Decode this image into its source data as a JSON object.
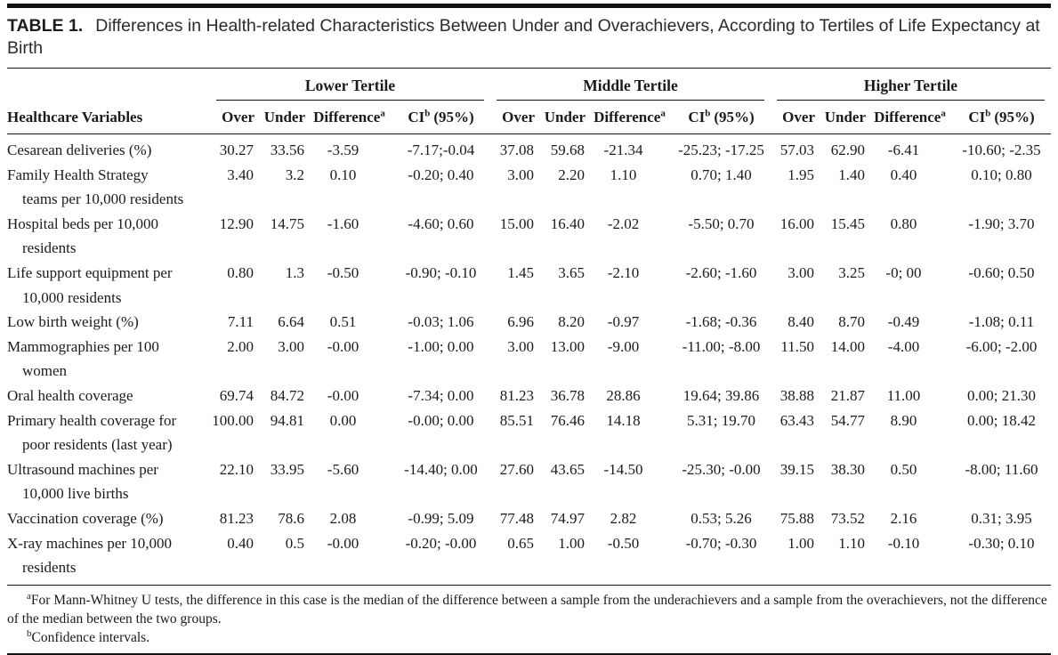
{
  "title": {
    "label": "TABLE 1.",
    "text": "Differences in Health-related Characteristics Between Under and Overachievers, According to Tertiles of Life Expectancy at Birth"
  },
  "table": {
    "row_header": "Healthcare Variables",
    "groups": [
      {
        "label": "Lower Tertile"
      },
      {
        "label": "Middle Tertile"
      },
      {
        "label": "Higher Tertile"
      }
    ],
    "subheaders": {
      "over": "Over",
      "under": "Under",
      "difference": "Difference",
      "difference_sup": "a",
      "ci": "CI",
      "ci_sup": "b",
      "ci_rest": "(95%)"
    },
    "rows": [
      {
        "variable": [
          "Cesarean deliveries (%)"
        ],
        "lower": [
          "30.27",
          "33.56",
          "-3.59",
          "-7.17;-0.04"
        ],
        "middle": [
          "37.08",
          "59.68",
          "-21.34",
          "-25.23; -17.25"
        ],
        "higher": [
          "57.03",
          "62.90",
          "-6.41",
          "-10.60; -2.35"
        ]
      },
      {
        "variable": [
          "Family Health Strategy",
          "teams per 10,000 residents"
        ],
        "lower": [
          "3.40",
          "3.2",
          "0.10",
          "-0.20; 0.40"
        ],
        "middle": [
          "3.00",
          "2.20",
          "1.10",
          "0.70; 1.40"
        ],
        "higher": [
          "1.95",
          "1.40",
          "0.40",
          "0.10; 0.80"
        ]
      },
      {
        "variable": [
          "Hospital beds per 10,000",
          "residents"
        ],
        "lower": [
          "12.90",
          "14.75",
          "-1.60",
          "-4.60; 0.60"
        ],
        "middle": [
          "15.00",
          "16.40",
          "-2.02",
          "-5.50; 0.70"
        ],
        "higher": [
          "16.00",
          "15.45",
          "0.80",
          "-1.90; 3.70"
        ]
      },
      {
        "variable": [
          "Life support equipment per",
          "10,000 residents"
        ],
        "lower": [
          "0.80",
          "1.3",
          "-0.50",
          "-0.90; -0.10"
        ],
        "middle": [
          "1.45",
          "3.65",
          "-2.10",
          "-2.60; -1.60"
        ],
        "higher": [
          "3.00",
          "3.25",
          "-0; 00",
          "-0.60; 0.50"
        ]
      },
      {
        "variable": [
          "Low birth weight (%)"
        ],
        "lower": [
          "7.11",
          "6.64",
          "0.51",
          "-0.03; 1.06"
        ],
        "middle": [
          "6.96",
          "8.20",
          "-0.97",
          "-1.68; -0.36"
        ],
        "higher": [
          "8.40",
          "8.70",
          "-0.49",
          "-1.08; 0.11"
        ]
      },
      {
        "variable": [
          "Mammographies per 100",
          "women"
        ],
        "lower": [
          "2.00",
          "3.00",
          "-0.00",
          "-1.00; 0.00"
        ],
        "middle": [
          "3.00",
          "13.00",
          "-9.00",
          "-11.00; -8.00"
        ],
        "higher": [
          "11.50",
          "14.00",
          "-4.00",
          "-6.00; -2.00"
        ]
      },
      {
        "variable": [
          "Oral health coverage"
        ],
        "lower": [
          "69.74",
          "84.72",
          "-0.00",
          "-7.34; 0.00"
        ],
        "middle": [
          "81.23",
          "36.78",
          "28.86",
          "19.64; 39.86"
        ],
        "higher": [
          "38.88",
          "21.87",
          "11.00",
          "0.00; 21.30"
        ]
      },
      {
        "variable": [
          "Primary health coverage for",
          "poor residents (last year)"
        ],
        "lower": [
          "100.00",
          "94.81",
          "0.00",
          "-0.00; 0.00"
        ],
        "middle": [
          "85.51",
          "76.46",
          "14.18",
          "5.31; 19.70"
        ],
        "higher": [
          "63.43",
          "54.77",
          "8.90",
          "0.00; 18.42"
        ]
      },
      {
        "variable": [
          "Ultrasound machines per",
          "10,000 live births"
        ],
        "lower": [
          "22.10",
          "33.95",
          "-5.60",
          "-14.40; 0.00"
        ],
        "middle": [
          "27.60",
          "43.65",
          "-14.50",
          "-25.30; -0.00"
        ],
        "higher": [
          "39.15",
          "38.30",
          "0.50",
          "-8.00; 11.60"
        ]
      },
      {
        "variable": [
          "Vaccination coverage (%)"
        ],
        "lower": [
          "81.23",
          "78.6",
          "2.08",
          "-0.99; 5.09"
        ],
        "middle": [
          "77.48",
          "74.97",
          "2.82",
          "0.53; 5.26"
        ],
        "higher": [
          "75.88",
          "73.52",
          "2.16",
          "0.31; 3.95"
        ]
      },
      {
        "variable": [
          "X-ray machines per 10,000",
          "residents"
        ],
        "lower": [
          "0.40",
          "0.5",
          "-0.00",
          "-0.20; -0.00"
        ],
        "middle": [
          "0.65",
          "1.00",
          "-0.50",
          "-0.70; -0.30"
        ],
        "higher": [
          "1.00",
          "1.10",
          "-0.10",
          "-0.30; 0.10"
        ]
      }
    ]
  },
  "footnotes": [
    {
      "sup": "a",
      "text": "For Mann-Whitney U tests, the difference in this case is the median of the difference between a sample from the underachievers and a sample from the overachievers, not the difference of the median between the two groups."
    },
    {
      "sup": "b",
      "text": "Confidence intervals."
    }
  ]
}
